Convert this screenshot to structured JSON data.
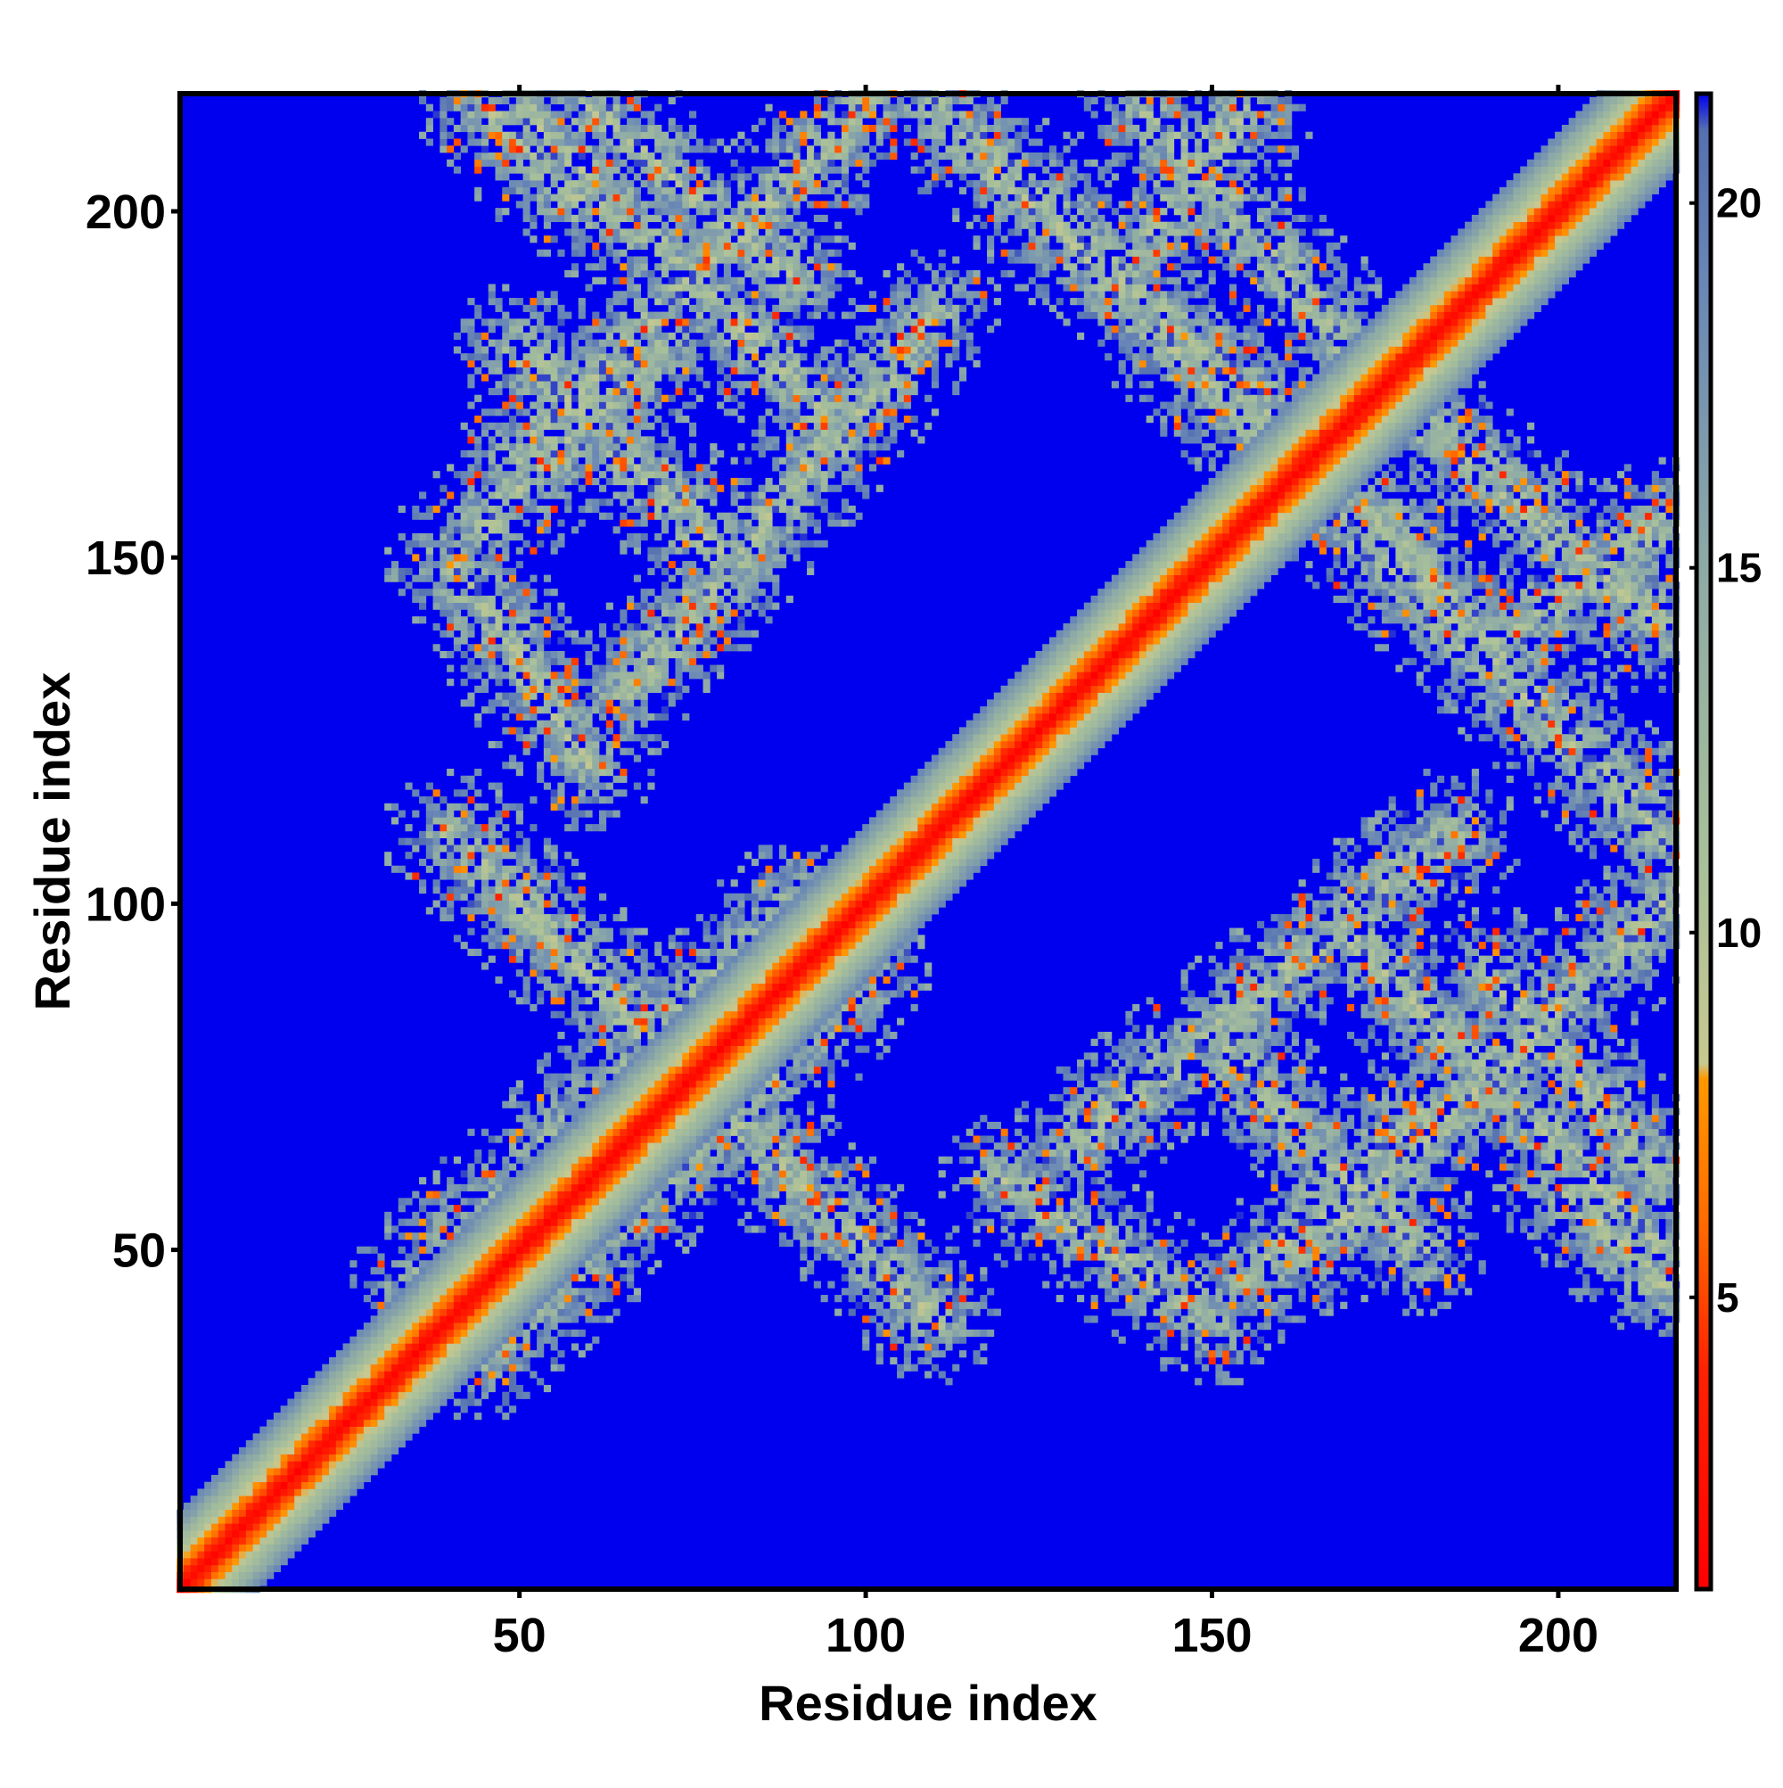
{
  "chart_data": {
    "type": "heatmap",
    "title": "",
    "xlabel": "Residue index",
    "ylabel": "Residue index",
    "n_residues": 217,
    "xlim": [
      1,
      217
    ],
    "ylim": [
      1,
      217
    ],
    "x_ticks": [
      50,
      100,
      150,
      200
    ],
    "y_ticks": [
      50,
      100,
      150,
      200
    ],
    "grid": false,
    "colorbar": {
      "placement": "right",
      "range": [
        1,
        21.5
      ],
      "ticks": [
        5,
        10,
        15,
        20
      ],
      "colors": [
        {
          "value": 1.0,
          "color": "#ff0000"
        },
        {
          "value": 4.0,
          "color": "#ff2200"
        },
        {
          "value": 6.0,
          "color": "#ff6a00"
        },
        {
          "value": 8.0,
          "color": "#ff9900"
        },
        {
          "value": 8.2,
          "color": "#c8c890"
        },
        {
          "value": 11.0,
          "color": "#a8c09a"
        },
        {
          "value": 15.0,
          "color": "#8eaaa6"
        },
        {
          "value": 19.0,
          "color": "#6886b6"
        },
        {
          "value": 21.0,
          "color": "#5570b0"
        },
        {
          "value": 21.5,
          "color": "#0000ee"
        }
      ]
    },
    "background_value": 21.5,
    "background_color": "#0000ee",
    "diagonal_band": {
      "core_value": 1.5,
      "half_width_residues": 11
    },
    "contact_bands": [
      {
        "i_start": 45,
        "j_start": 35,
        "i_end": 100,
        "j_end": 90,
        "note": "residues ~35-90 vs ~45-100"
      },
      {
        "i_start": 95,
        "j_start": 55,
        "i_end": 40,
        "j_end": 110
      },
      {
        "i_start": 80,
        "j_start": 150,
        "i_end": 50,
        "j_end": 180
      },
      {
        "i_start": 50,
        "j_start": 165,
        "i_end": 100,
        "j_end": 215
      },
      {
        "i_start": 90,
        "j_start": 190,
        "i_end": 60,
        "j_end": 215
      },
      {
        "i_start": 120,
        "j_start": 60,
        "i_end": 150,
        "j_end": 40
      },
      {
        "i_start": 155,
        "j_start": 45,
        "i_end": 180,
        "j_end": 70
      },
      {
        "i_start": 130,
        "j_start": 65,
        "i_end": 185,
        "j_end": 110
      },
      {
        "i_start": 110,
        "j_start": 215,
        "i_end": 180,
        "j_end": 150
      },
      {
        "i_start": 140,
        "j_start": 215,
        "i_end": 170,
        "j_end": 180
      },
      {
        "i_start": 160,
        "j_start": 165,
        "i_end": 215,
        "j_end": 110
      },
      {
        "i_start": 170,
        "j_start": 95,
        "i_end": 215,
        "j_end": 50
      },
      {
        "i_start": 195,
        "j_start": 140,
        "i_end": 215,
        "j_end": 155
      },
      {
        "i_start": 200,
        "j_start": 60,
        "i_end": 215,
        "j_end": 45
      }
    ]
  }
}
